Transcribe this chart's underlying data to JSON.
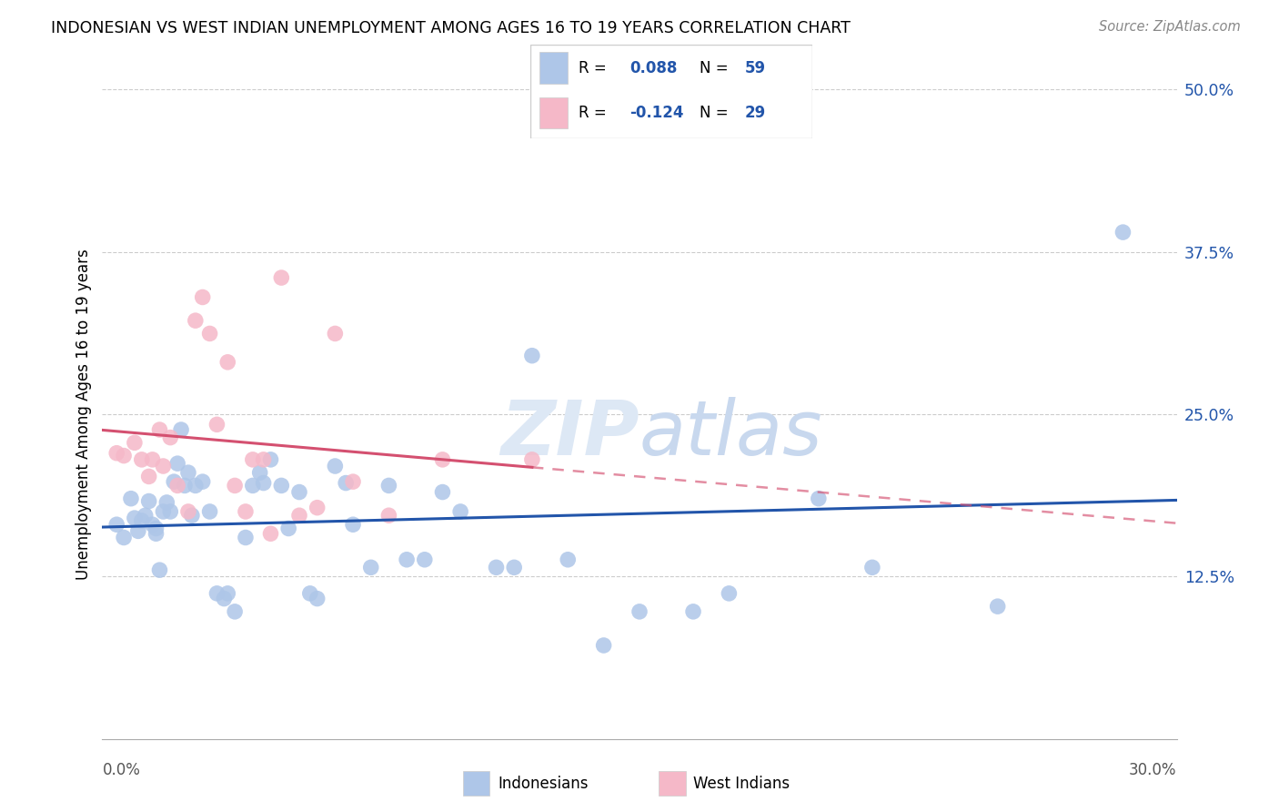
{
  "title": "INDONESIAN VS WEST INDIAN UNEMPLOYMENT AMONG AGES 16 TO 19 YEARS CORRELATION CHART",
  "source": "Source: ZipAtlas.com",
  "ylabel": "Unemployment Among Ages 16 to 19 years",
  "xlim": [
    0.0,
    0.3
  ],
  "ylim": [
    0.0,
    0.5
  ],
  "yticks": [
    0.125,
    0.25,
    0.375,
    0.5
  ],
  "ytick_labels": [
    "12.5%",
    "25.0%",
    "37.5%",
    "50.0%"
  ],
  "indonesian_color": "#aec6e8",
  "indonesian_edge_color": "#aec6e8",
  "indonesian_line_color": "#2255aa",
  "west_indian_color": "#f5b8c8",
  "west_indian_edge_color": "#f5b8c8",
  "west_indian_line_color": "#d45070",
  "label_color": "#2255aa",
  "R_indonesian": 0.088,
  "N_indonesian": 59,
  "R_west_indian": -0.124,
  "N_west_indian": 29,
  "watermark": "ZIPatlas",
  "indo_x": [
    0.004,
    0.006,
    0.008,
    0.009,
    0.01,
    0.011,
    0.012,
    0.013,
    0.014,
    0.015,
    0.015,
    0.016,
    0.017,
    0.018,
    0.019,
    0.02,
    0.021,
    0.022,
    0.023,
    0.024,
    0.025,
    0.026,
    0.028,
    0.03,
    0.032,
    0.034,
    0.035,
    0.037,
    0.04,
    0.042,
    0.044,
    0.045,
    0.047,
    0.05,
    0.052,
    0.055,
    0.058,
    0.06,
    0.065,
    0.068,
    0.07,
    0.075,
    0.08,
    0.085,
    0.09,
    0.095,
    0.1,
    0.11,
    0.115,
    0.12,
    0.13,
    0.14,
    0.15,
    0.165,
    0.175,
    0.2,
    0.215,
    0.25,
    0.285
  ],
  "indo_y": [
    0.165,
    0.155,
    0.185,
    0.17,
    0.16,
    0.168,
    0.172,
    0.183,
    0.165,
    0.158,
    0.162,
    0.13,
    0.175,
    0.182,
    0.175,
    0.198,
    0.212,
    0.238,
    0.195,
    0.205,
    0.172,
    0.195,
    0.198,
    0.175,
    0.112,
    0.108,
    0.112,
    0.098,
    0.155,
    0.195,
    0.205,
    0.197,
    0.215,
    0.195,
    0.162,
    0.19,
    0.112,
    0.108,
    0.21,
    0.197,
    0.165,
    0.132,
    0.195,
    0.138,
    0.138,
    0.19,
    0.175,
    0.132,
    0.132,
    0.295,
    0.138,
    0.072,
    0.098,
    0.098,
    0.112,
    0.185,
    0.132,
    0.102,
    0.39
  ],
  "wi_x": [
    0.004,
    0.006,
    0.009,
    0.011,
    0.013,
    0.014,
    0.016,
    0.017,
    0.019,
    0.021,
    0.024,
    0.026,
    0.028,
    0.03,
    0.032,
    0.035,
    0.037,
    0.04,
    0.042,
    0.045,
    0.047,
    0.05,
    0.055,
    0.06,
    0.065,
    0.07,
    0.08,
    0.095,
    0.12
  ],
  "wi_y": [
    0.22,
    0.218,
    0.228,
    0.215,
    0.202,
    0.215,
    0.238,
    0.21,
    0.232,
    0.195,
    0.175,
    0.322,
    0.34,
    0.312,
    0.242,
    0.29,
    0.195,
    0.175,
    0.215,
    0.215,
    0.158,
    0.355,
    0.172,
    0.178,
    0.312,
    0.198,
    0.172,
    0.215,
    0.215
  ]
}
